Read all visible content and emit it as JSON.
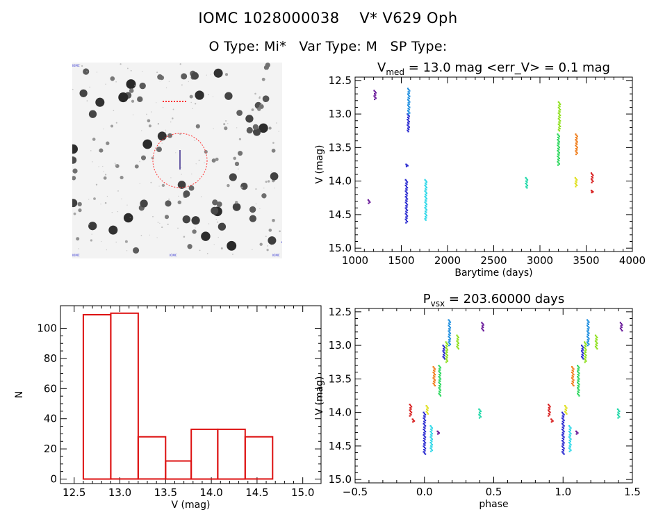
{
  "header": {
    "id_label": "IOMC 1028000038",
    "name_label": "V* V629 Oph",
    "o_type": "O Type: Mi*",
    "var_type": "Var Type: M",
    "sp_type": "SP Type:"
  },
  "colors": {
    "histogram": "#dd1111",
    "aperture": "#ff3030",
    "lc_palette": [
      "#6a1b9a",
      "#2a2ad0",
      "#1f8fe0",
      "#30d8e8",
      "#20d8a8",
      "#30d860",
      "#90e020",
      "#e0e020",
      "#f08020",
      "#d82020"
    ]
  },
  "sky_image": {
    "corner_labels": [
      "IOMC",
      "IOMC",
      "IOMC",
      "IOMC"
    ]
  },
  "chart_data": [
    {
      "type": "scatter",
      "title": "V_med = 13.0 mag <err_V> = 0.1 mag",
      "title_parts": {
        "v": "V",
        "sub": "med",
        "rest": " = 13.0 mag <err_V> = 0.1 mag"
      },
      "xlabel": "Barytime (days)",
      "ylabel": "V (mag)",
      "xlim": [
        1000,
        4000
      ],
      "ylim": [
        15.05,
        12.45
      ],
      "xticks": [
        1000,
        1500,
        2000,
        2500,
        3000,
        3500,
        4000
      ],
      "yticks": [
        12.5,
        13.0,
        13.5,
        14.0,
        14.5,
        15.0
      ],
      "xtick_labels": [
        "1000",
        "1500",
        "2000",
        "2500",
        "3000",
        "3500",
        "4000"
      ],
      "ytick_labels": [
        "12.5",
        "13.0",
        "13.5",
        "14.0",
        "14.5",
        "15.0"
      ],
      "clusters": [
        {
          "x": 1150,
          "ymin": 14.28,
          "ymax": 14.33,
          "color": 0
        },
        {
          "x": 1215,
          "ymin": 12.65,
          "ymax": 12.78,
          "color": 0
        },
        {
          "x": 1560,
          "ymin": 13.75,
          "ymax": 13.78,
          "color": 1
        },
        {
          "x": 1555,
          "ymin": 13.98,
          "ymax": 14.62,
          "color": 1
        },
        {
          "x": 1575,
          "ymin": 13.0,
          "ymax": 13.26,
          "color": 1
        },
        {
          "x": 1580,
          "ymin": 12.62,
          "ymax": 13.0,
          "color": 2
        },
        {
          "x": 1765,
          "ymin": 13.98,
          "ymax": 14.58,
          "color": 3
        },
        {
          "x": 2855,
          "ymin": 13.95,
          "ymax": 14.1,
          "color": 4
        },
        {
          "x": 3200,
          "ymin": 13.3,
          "ymax": 13.76,
          "color": 5
        },
        {
          "x": 3210,
          "ymin": 12.82,
          "ymax": 13.25,
          "color": 6
        },
        {
          "x": 3390,
          "ymin": 13.95,
          "ymax": 14.08,
          "color": 7
        },
        {
          "x": 3395,
          "ymin": 13.3,
          "ymax": 13.6,
          "color": 8
        },
        {
          "x": 3565,
          "ymin": 13.88,
          "ymax": 14.02,
          "color": 9
        },
        {
          "x": 3565,
          "ymin": 14.14,
          "ymax": 14.17,
          "color": 9
        }
      ]
    },
    {
      "type": "bar",
      "title": "",
      "xlabel": "V (mag)",
      "ylabel": "N",
      "xlim": [
        12.35,
        15.2
      ],
      "ylim": [
        -3,
        115
      ],
      "xticks": [
        12.5,
        13.0,
        13.5,
        14.0,
        14.5,
        15.0
      ],
      "yticks": [
        0,
        20,
        40,
        60,
        80,
        100
      ],
      "xtick_labels": [
        "12.5",
        "13.0",
        "13.5",
        "14.0",
        "14.5",
        "15.0"
      ],
      "ytick_labels": [
        "0",
        "20",
        "40",
        "60",
        "80",
        "100"
      ],
      "bin_edges": [
        12.6,
        12.9,
        13.2,
        13.5,
        13.78,
        14.07,
        14.37,
        14.67
      ],
      "values": [
        109,
        110,
        28,
        12,
        33,
        33,
        28
      ]
    },
    {
      "type": "scatter",
      "title": "P_vsx = 203.60000 days",
      "title_parts": {
        "v": "P",
        "sub": "vsx",
        "rest": " = 203.60000 days"
      },
      "xlabel": "phase",
      "ylabel": "V (mag)",
      "xlim": [
        -0.5,
        1.5
      ],
      "ylim": [
        15.05,
        12.45
      ],
      "xticks": [
        -0.5,
        0.0,
        0.5,
        1.0,
        1.5
      ],
      "yticks": [
        12.5,
        13.0,
        13.5,
        14.0,
        14.5,
        15.0
      ],
      "xtick_labels": [
        "−0.5",
        "0.0",
        "0.5",
        "1.0",
        "1.5"
      ],
      "ytick_labels": [
        "12.5",
        "13.0",
        "13.5",
        "14.0",
        "14.5",
        "15.0"
      ],
      "clusters": [
        {
          "x": -0.1,
          "ymin": 13.88,
          "ymax": 14.05,
          "color": 9
        },
        {
          "x": -0.08,
          "ymin": 14.1,
          "ymax": 14.14,
          "color": 9
        },
        {
          "x": 0.0,
          "ymin": 14.0,
          "ymax": 14.62,
          "color": 1
        },
        {
          "x": 0.02,
          "ymin": 13.9,
          "ymax": 14.02,
          "color": 7
        },
        {
          "x": 0.05,
          "ymin": 14.2,
          "ymax": 14.58,
          "color": 3
        },
        {
          "x": 0.07,
          "ymin": 13.32,
          "ymax": 13.6,
          "color": 8
        },
        {
          "x": 0.1,
          "ymin": 14.28,
          "ymax": 14.32,
          "color": 0
        },
        {
          "x": 0.11,
          "ymin": 13.3,
          "ymax": 13.75,
          "color": 5
        },
        {
          "x": 0.14,
          "ymin": 13.0,
          "ymax": 13.2,
          "color": 1
        },
        {
          "x": 0.16,
          "ymin": 12.95,
          "ymax": 13.25,
          "color": 6
        },
        {
          "x": 0.18,
          "ymin": 12.62,
          "ymax": 13.0,
          "color": 2
        },
        {
          "x": 0.24,
          "ymin": 12.85,
          "ymax": 13.05,
          "color": 6
        },
        {
          "x": 0.4,
          "ymin": 13.95,
          "ymax": 14.08,
          "color": 4
        },
        {
          "x": 0.42,
          "ymin": 12.66,
          "ymax": 12.78,
          "color": 0
        },
        {
          "x": 0.9,
          "ymin": 13.88,
          "ymax": 14.05,
          "color": 9
        },
        {
          "x": 0.92,
          "ymin": 14.1,
          "ymax": 14.14,
          "color": 9
        },
        {
          "x": 1.0,
          "ymin": 14.0,
          "ymax": 14.62,
          "color": 1
        },
        {
          "x": 1.02,
          "ymin": 13.9,
          "ymax": 14.02,
          "color": 7
        },
        {
          "x": 1.05,
          "ymin": 14.2,
          "ymax": 14.58,
          "color": 3
        },
        {
          "x": 1.07,
          "ymin": 13.32,
          "ymax": 13.6,
          "color": 8
        },
        {
          "x": 1.1,
          "ymin": 14.28,
          "ymax": 14.32,
          "color": 0
        },
        {
          "x": 1.11,
          "ymin": 13.3,
          "ymax": 13.75,
          "color": 5
        },
        {
          "x": 1.14,
          "ymin": 13.0,
          "ymax": 13.2,
          "color": 1
        },
        {
          "x": 1.16,
          "ymin": 12.95,
          "ymax": 13.25,
          "color": 6
        },
        {
          "x": 1.18,
          "ymin": 12.62,
          "ymax": 13.0,
          "color": 2
        },
        {
          "x": 1.24,
          "ymin": 12.85,
          "ymax": 13.05,
          "color": 6
        },
        {
          "x": 1.4,
          "ymin": 13.95,
          "ymax": 14.08,
          "color": 4
        },
        {
          "x": 1.42,
          "ymin": 12.66,
          "ymax": 12.78,
          "color": 0
        }
      ]
    }
  ]
}
